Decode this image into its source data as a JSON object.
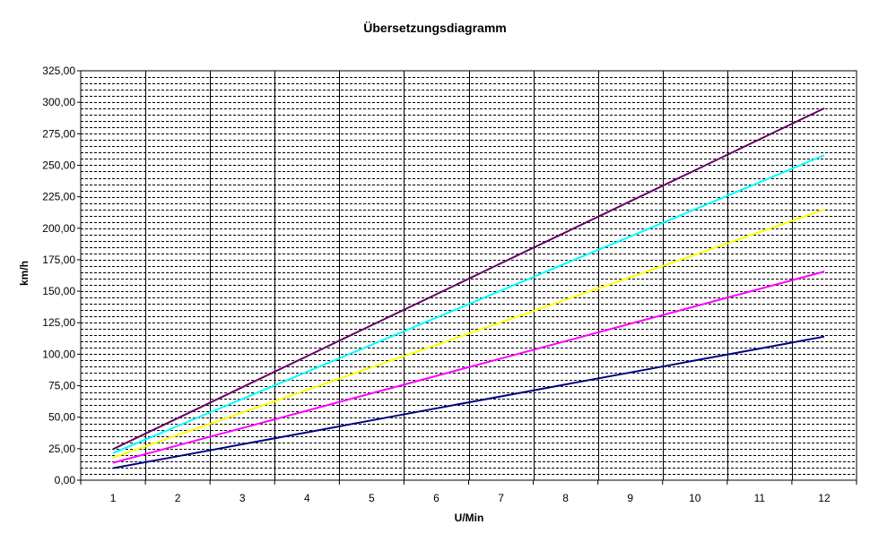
{
  "chart_data": {
    "type": "line",
    "title": "Übersetzungsdiagramm",
    "xlabel": "U/Min",
    "ylabel": "km/h",
    "categories": [
      "1",
      "2",
      "3",
      "4",
      "5",
      "6",
      "7",
      "8",
      "9",
      "10",
      "11",
      "12"
    ],
    "ylim": [
      0,
      325
    ],
    "y_ticks": [
      "0,00",
      "25,00",
      "50,00",
      "75,00",
      "100,00",
      "125,00",
      "150,00",
      "175,00",
      "200,00",
      "225,00",
      "250,00",
      "275,00",
      "300,00",
      "325,00"
    ],
    "grid": true,
    "legend": "none",
    "series": [
      {
        "color": "#660066",
        "values": [
          24.6,
          49.2,
          73.8,
          98.4,
          123.0,
          147.6,
          172.2,
          196.8,
          221.4,
          246.0,
          270.6,
          295.2
        ]
      },
      {
        "color": "#00ffff",
        "values": [
          21.5,
          43.0,
          64.5,
          86.0,
          107.5,
          129.0,
          150.5,
          172.0,
          193.5,
          215.0,
          236.5,
          258.0
        ]
      },
      {
        "color": "#ffff00",
        "values": [
          17.9,
          35.8,
          53.7,
          71.6,
          89.5,
          107.4,
          125.3,
          143.2,
          161.1,
          179.0,
          196.9,
          214.8
        ]
      },
      {
        "color": "#ff00ff",
        "values": [
          13.8,
          27.6,
          41.4,
          55.2,
          69.0,
          82.8,
          96.6,
          110.4,
          124.2,
          138.0,
          151.8,
          165.6
        ]
      },
      {
        "color": "#000080",
        "values": [
          9.5,
          19.0,
          28.5,
          38.0,
          47.5,
          57.0,
          66.5,
          76.0,
          85.5,
          95.0,
          104.5,
          114.0
        ]
      }
    ]
  }
}
